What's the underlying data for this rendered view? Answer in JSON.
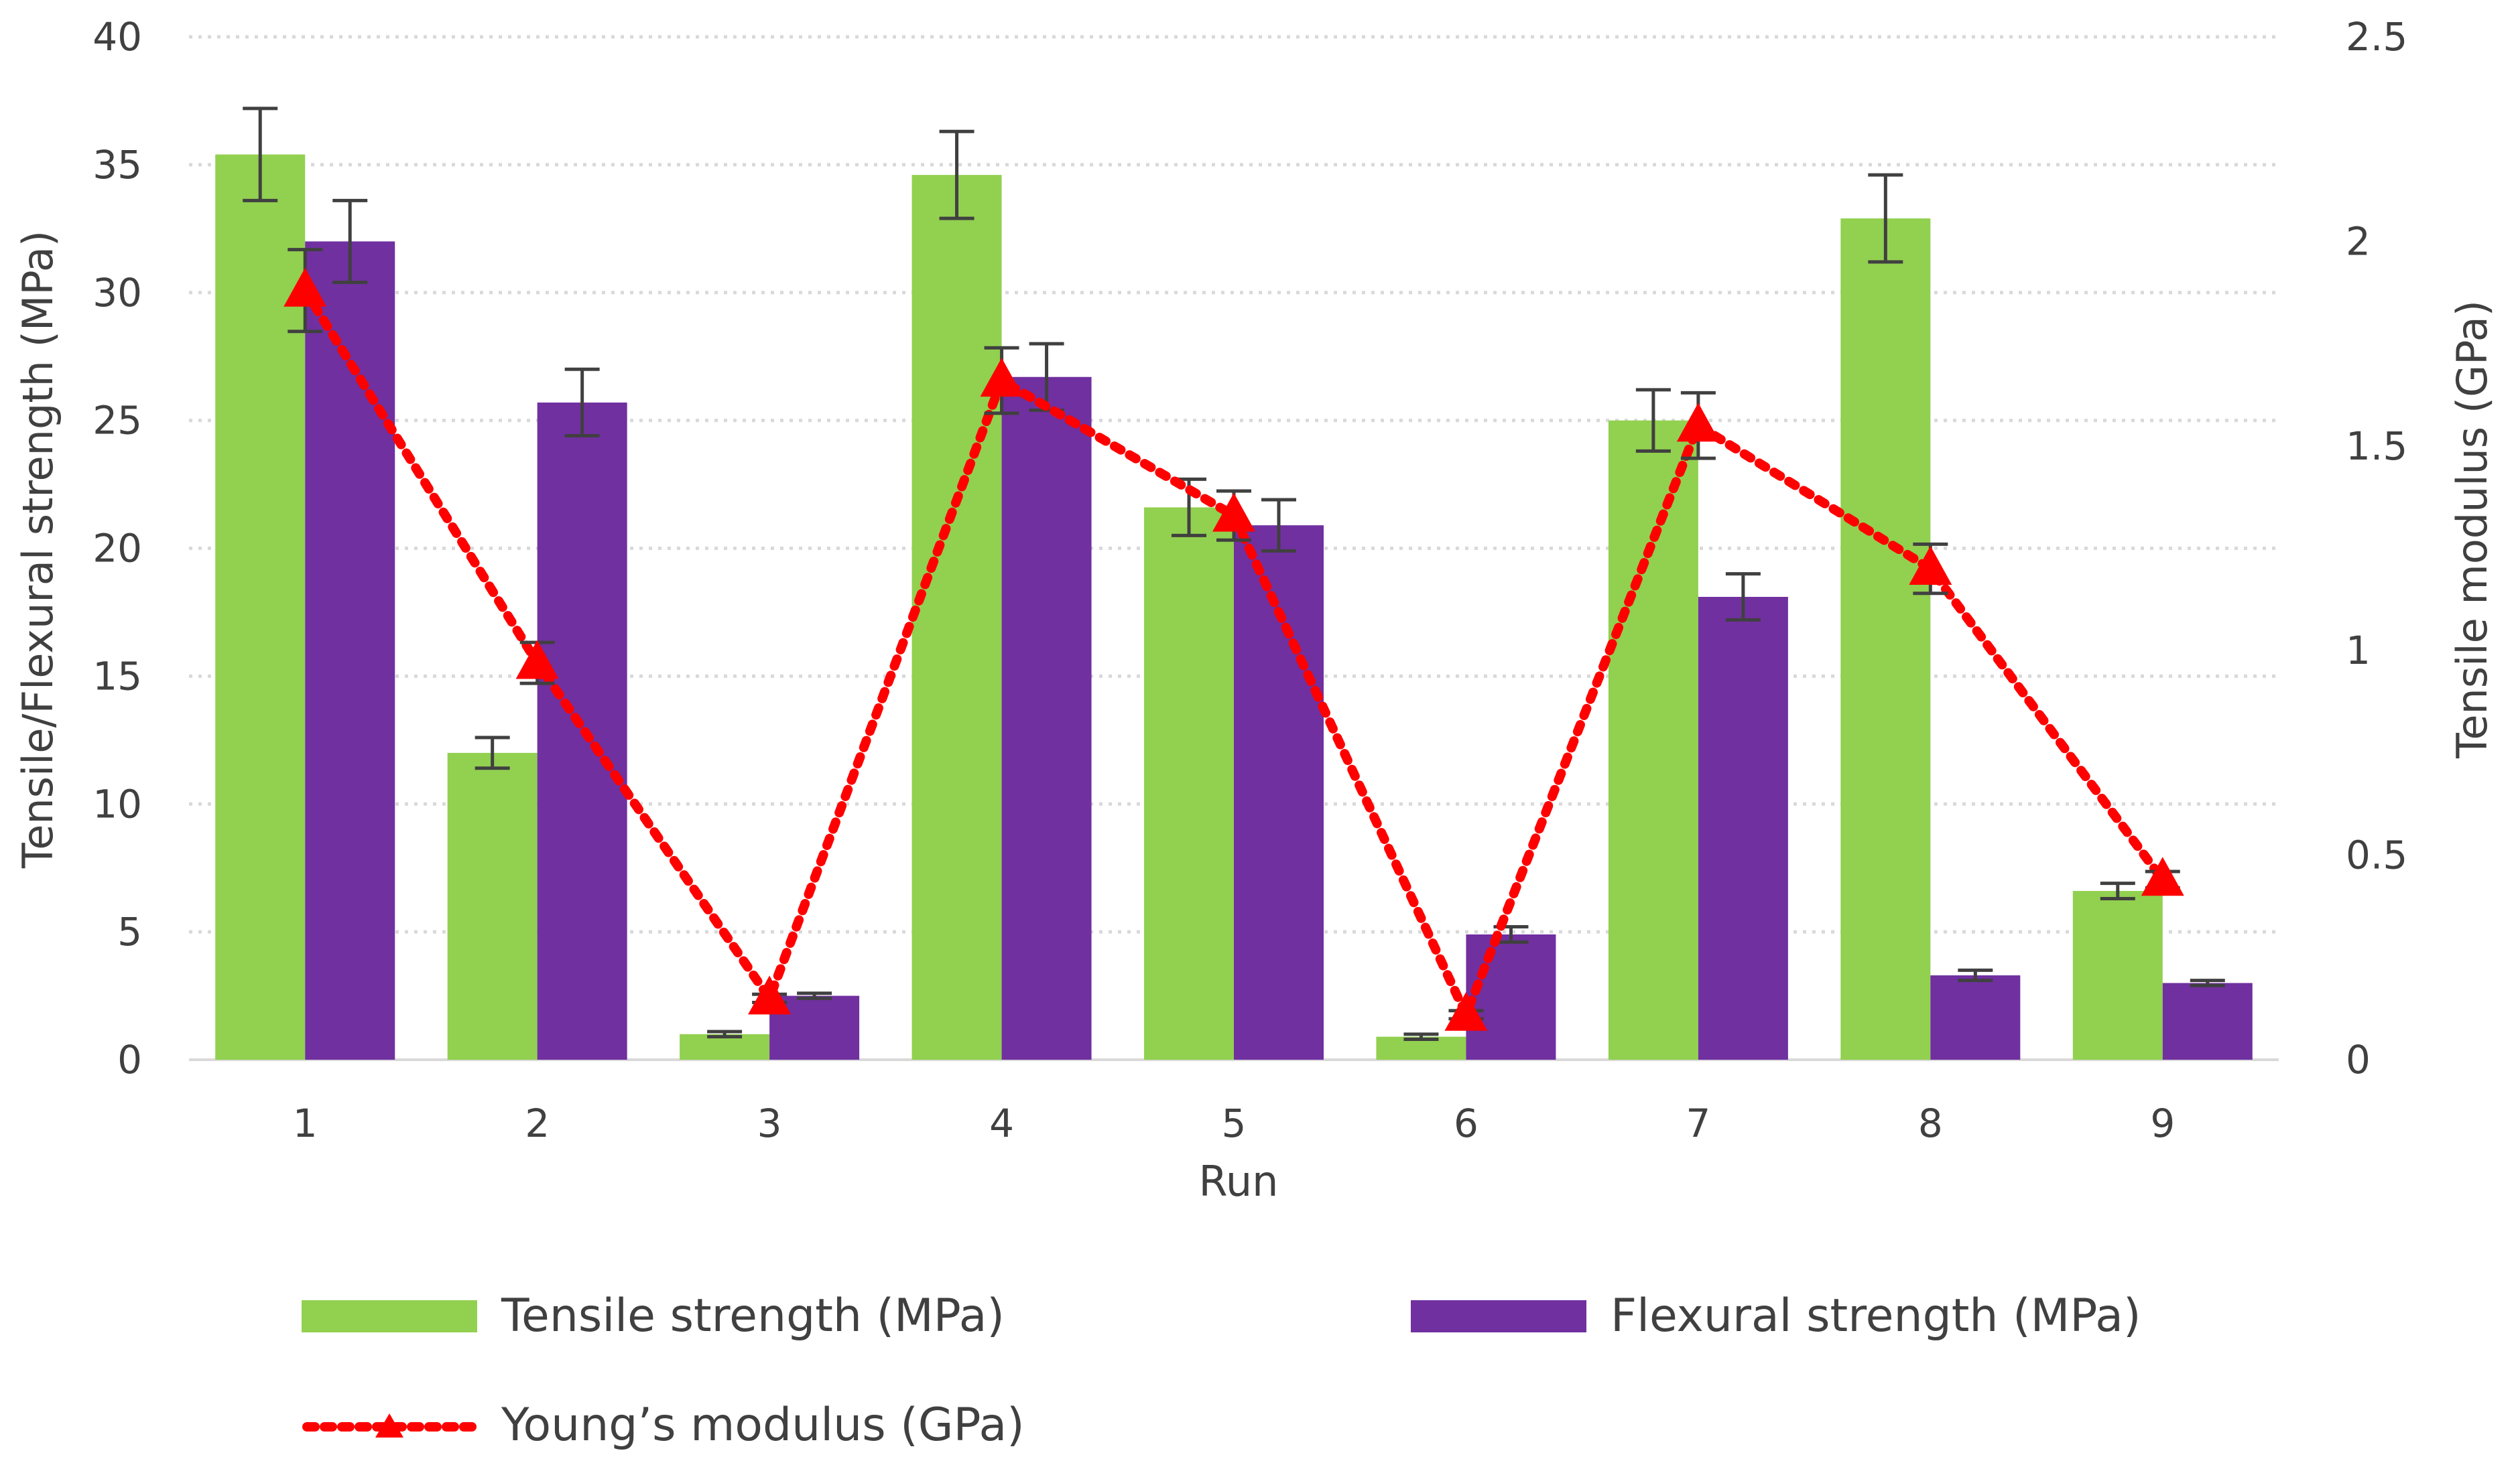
{
  "chart_data": {
    "type": "bar",
    "categories": [
      "1",
      "2",
      "3",
      "4",
      "5",
      "6",
      "7",
      "8",
      "9"
    ],
    "xlabel": "Run",
    "ylabel": "Tensile/Flexural strength (MPa)",
    "y2label": "Tensile modulus (GPa)",
    "ylim": [
      0,
      40
    ],
    "y2lim": [
      0,
      2.5
    ],
    "yticks": [
      "0",
      "5",
      "10",
      "15",
      "20",
      "25",
      "30",
      "35",
      "40"
    ],
    "y2ticks": [
      "0",
      "0.5",
      "1",
      "1.5",
      "2",
      "2.5"
    ],
    "grid": "horizontal dotted",
    "legend_position": "bottom",
    "series": [
      {
        "name": "Tensile strength (MPa)",
        "type": "bar",
        "axis": "left",
        "color": "#92d050",
        "values": [
          35.4,
          12.0,
          1.0,
          34.6,
          21.6,
          0.9,
          25.0,
          32.9,
          6.6
        ],
        "errors": [
          1.8,
          0.6,
          0.1,
          1.7,
          1.1,
          0.1,
          1.2,
          1.7,
          0.3
        ]
      },
      {
        "name": "Flexural strength (MPa)",
        "type": "bar",
        "axis": "left",
        "color": "#7030a0",
        "values": [
          32.0,
          25.7,
          2.5,
          26.7,
          20.9,
          4.9,
          18.1,
          3.3,
          3.0
        ],
        "errors": [
          1.6,
          1.3,
          0.1,
          1.3,
          1.0,
          0.3,
          0.9,
          0.2,
          0.1
        ]
      },
      {
        "name": "Young’s modulus (GPa)",
        "type": "line",
        "axis": "right",
        "color": "#ff0000",
        "values": [
          1.88,
          0.97,
          0.15,
          1.66,
          1.33,
          0.11,
          1.55,
          1.2,
          0.44
        ],
        "errors": [
          0.1,
          0.05,
          0.01,
          0.08,
          0.06,
          0.01,
          0.08,
          0.06,
          0.02
        ]
      }
    ]
  }
}
